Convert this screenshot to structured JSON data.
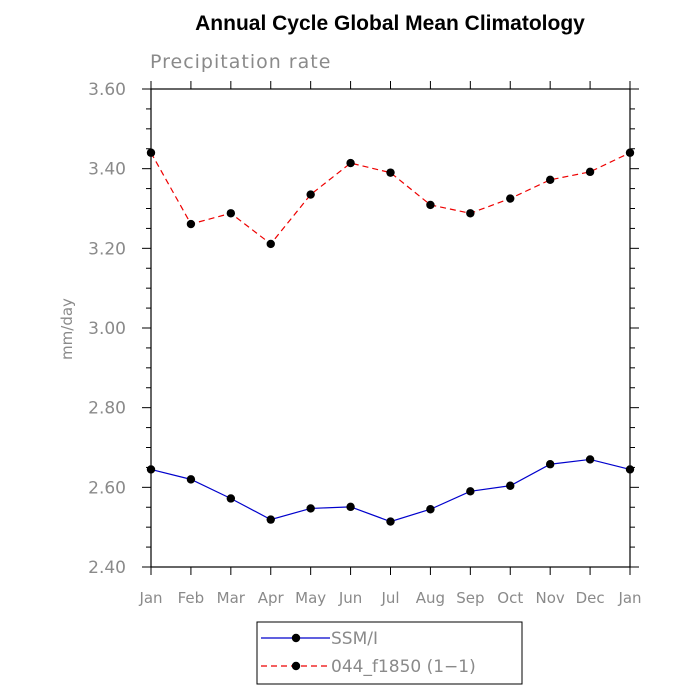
{
  "chart_data": {
    "type": "line",
    "title": "Annual Cycle Global Mean Climatology",
    "subtitle": "Precipitation rate",
    "ylabel": "mm/day",
    "xlabel": "",
    "ylim": [
      2.4,
      3.6
    ],
    "yticks": [
      2.4,
      2.6,
      2.8,
      3.0,
      3.2,
      3.4,
      3.6
    ],
    "ytick_labels": [
      "2.40",
      "2.60",
      "2.80",
      "3.00",
      "3.20",
      "3.40",
      "3.60"
    ],
    "categories": [
      "Jan",
      "Feb",
      "Mar",
      "Apr",
      "May",
      "Jun",
      "Jul",
      "Aug",
      "Sep",
      "Oct",
      "Nov",
      "Dec",
      "Jan"
    ],
    "grid": false,
    "legend_position": "bottom",
    "series": [
      {
        "name": "SSM/I",
        "color": "#0000cc",
        "dash": "solid",
        "values": [
          2.645,
          2.62,
          2.572,
          2.519,
          2.547,
          2.551,
          2.514,
          2.545,
          2.59,
          2.604,
          2.658,
          2.67,
          2.645
        ]
      },
      {
        "name": "044_f1850 (1−1)",
        "color": "#ee0000",
        "dash": "dashed",
        "values": [
          3.44,
          3.261,
          3.288,
          3.211,
          3.335,
          3.414,
          3.39,
          3.309,
          3.288,
          3.325,
          3.372,
          3.392,
          3.44
        ]
      }
    ]
  }
}
